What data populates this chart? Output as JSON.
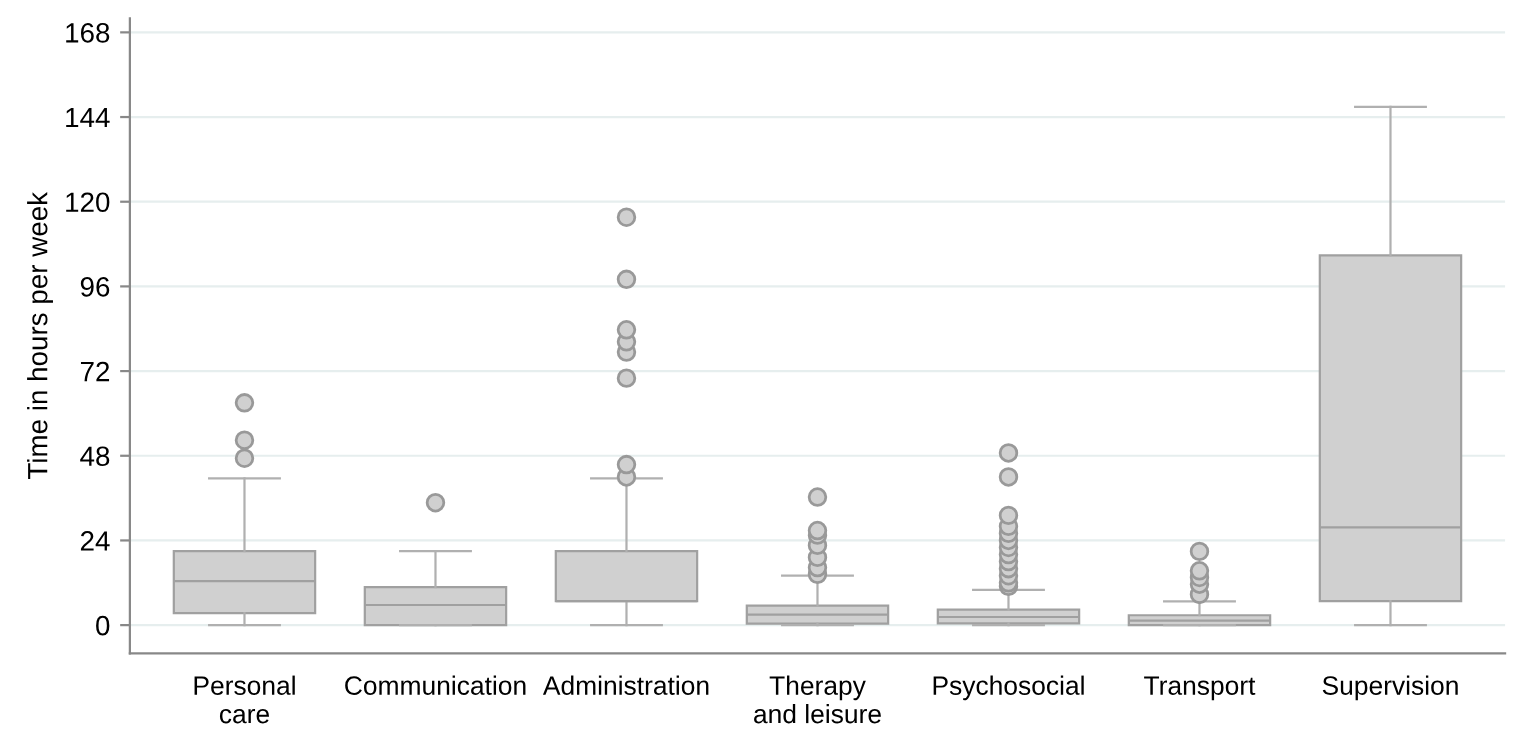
{
  "chart_data": {
    "type": "box",
    "ylabel": "Time in hours per week",
    "categories": [
      "Personal\ncare",
      "Communication",
      "Administration",
      "Therapy\nand leisure",
      "Psychosocial",
      "Transport",
      "Supervision"
    ],
    "boxes": [
      {
        "low": 0,
        "q1": 3.4,
        "median": 12.5,
        "q3": 21,
        "high": 41.6,
        "outliers": [
          47.3,
          52.4,
          63
        ]
      },
      {
        "low": 0,
        "q1": 0,
        "median": 5.7,
        "q3": 10.8,
        "high": 21,
        "outliers": [
          34.7
        ]
      },
      {
        "low": 0,
        "q1": 6.8,
        "median": 6.8,
        "q3": 21,
        "high": 41.6,
        "outliers": [
          42,
          45.5,
          70,
          77.4,
          80.3,
          83.7,
          98,
          115.6
        ]
      },
      {
        "low": 0,
        "q1": 0.4,
        "median": 3,
        "q3": 5.5,
        "high": 14,
        "outliers": [
          14.4,
          16.3,
          19.2,
          22.6,
          25.5,
          26.8,
          36.3
        ]
      },
      {
        "low": 0,
        "q1": 0.5,
        "median": 2.3,
        "q3": 4.4,
        "high": 10,
        "outliers": [
          11,
          12,
          14,
          16,
          18,
          20,
          22,
          24,
          26,
          28,
          31.1,
          42,
          48.8
        ]
      },
      {
        "low": 0,
        "q1": 0,
        "median": 1.3,
        "q3": 2.8,
        "high": 6.7,
        "outliers": [
          8.7,
          11.6,
          13.5,
          15.4,
          20.9
        ]
      },
      {
        "low": 0,
        "q1": 6.8,
        "median": 27.7,
        "q3": 104.8,
        "high": 146.9
      }
    ],
    "color": "#d0d0d0",
    "ylim": [
      -8,
      172
    ],
    "yticks": [
      0,
      24,
      48,
      72,
      96,
      120,
      144,
      168
    ],
    "grid": "y"
  }
}
